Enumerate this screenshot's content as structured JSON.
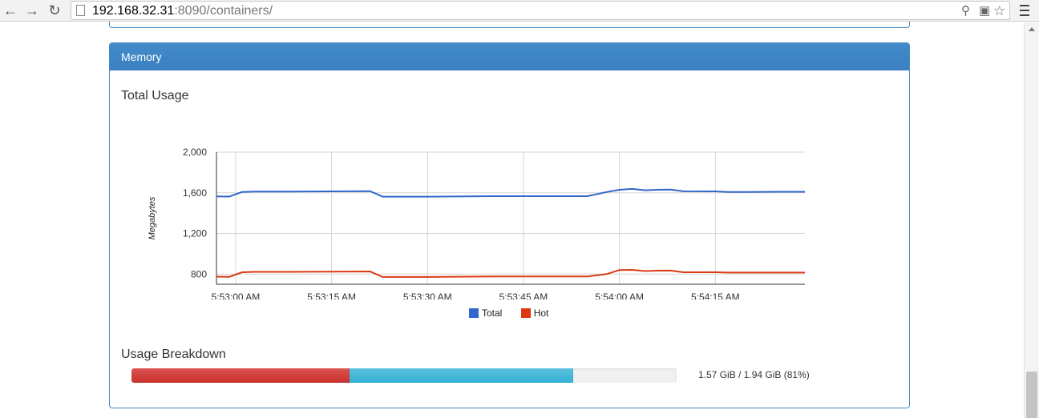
{
  "browser": {
    "url_host": "192.168.32.31",
    "url_rest": ":8090/containers/",
    "back_icon": "back-arrow-icon",
    "forward_icon": "forward-arrow-icon",
    "reload_icon": "reload-icon"
  },
  "panel": {
    "heading": "Memory",
    "total_usage_title": "Total Usage",
    "breakdown_title": "Usage Breakdown",
    "usage_text": "1.57 GiB / 1.94 GiB (81%)",
    "breakdown": {
      "hot_fraction": 0.4,
      "total_fraction": 0.81
    }
  },
  "colors": {
    "total": "#3366cc",
    "hot": "#dc3912",
    "accent": "#428bca"
  },
  "chart_data": {
    "type": "line",
    "title": "",
    "xlabel": "",
    "ylabel": "Megabytes",
    "ylim": [
      700,
      2000
    ],
    "yticks": [
      800,
      1200,
      1600,
      2000
    ],
    "ytick_labels": [
      "800",
      "1,200",
      "1,600",
      "2,000"
    ],
    "xtick_labels": [
      "5:53:00 AM",
      "5:53:15 AM",
      "5:53:30 AM",
      "5:53:45 AM",
      "5:54:00 AM",
      "5:54:15 AM"
    ],
    "xtick_seconds": [
      0,
      15,
      30,
      45,
      60,
      75
    ],
    "xlim_seconds": [
      -3,
      89
    ],
    "legend_position": "bottom",
    "grid": true,
    "x_seconds": [
      -3,
      -1,
      1,
      3,
      9,
      15,
      21,
      23,
      25,
      30,
      40,
      45,
      50,
      55,
      58,
      60,
      62,
      64,
      66,
      68,
      70,
      75,
      77,
      80,
      85,
      89
    ],
    "series": [
      {
        "name": "Total",
        "values": [
          1565,
          1563,
          1608,
          1612,
          1612,
          1614,
          1616,
          1562,
          1562,
          1562,
          1567,
          1567,
          1567,
          1567,
          1608,
          1630,
          1638,
          1625,
          1630,
          1632,
          1615,
          1614,
          1608,
          1608,
          1610,
          1610
        ]
      },
      {
        "name": "Hot",
        "values": [
          775,
          773,
          818,
          822,
          822,
          824,
          826,
          772,
          772,
          772,
          777,
          777,
          777,
          777,
          800,
          840,
          842,
          830,
          834,
          835,
          818,
          818,
          815,
          815,
          815,
          815
        ]
      }
    ]
  }
}
